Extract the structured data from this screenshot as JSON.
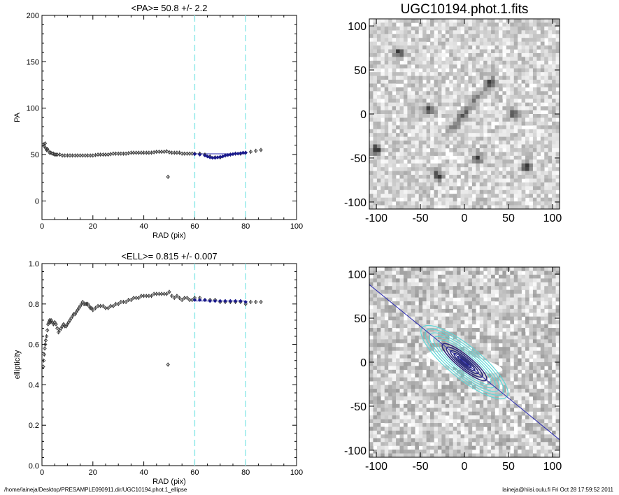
{
  "footer": {
    "path": "/home/laineja/Desktop/PRESAMPLE090911.dir/UGC10194.phot.1_ellipse",
    "stamp": "laineja@hiisi.oulu.fi  Fri Oct 28 17:59:52 2011"
  },
  "colors": {
    "data_points": "#333333",
    "fit_points": "#1a1a8c",
    "fit_line": "#2a2ab0",
    "range_marker": "#8ee8e8",
    "contour_inner": "#2a2a7a",
    "contour_outer": "#5fd6d6"
  },
  "chart_data": [
    {
      "id": "pa",
      "type": "scatter",
      "title": "<PA>=  50.8 +/-   2.2",
      "xlabel": "RAD (pix)",
      "ylabel": "PA",
      "xlim": [
        0,
        100
      ],
      "ylim": [
        -20,
        200
      ],
      "xticks": [
        0,
        20,
        40,
        60,
        80,
        100
      ],
      "yticks": [
        0,
        50,
        100,
        150,
        200
      ],
      "tick_labels_x": [
        "0",
        "20",
        "40",
        "60",
        "80",
        "100"
      ],
      "tick_labels_y": [
        "0",
        "50",
        "100",
        "150",
        "200"
      ],
      "range_markers_x": [
        60,
        80
      ],
      "points": [
        [
          0.6,
          61
        ],
        [
          0.9,
          59
        ],
        [
          1.2,
          62
        ],
        [
          1.5,
          57
        ],
        [
          1.8,
          55
        ],
        [
          2.1,
          56
        ],
        [
          2.5,
          54
        ],
        [
          3,
          52
        ],
        [
          3.5,
          52
        ],
        [
          4,
          51
        ],
        [
          4.5,
          51
        ],
        [
          5,
          50
        ],
        [
          5.5,
          50
        ],
        [
          6,
          50
        ],
        [
          7,
          50
        ],
        [
          8,
          49
        ],
        [
          9,
          49
        ],
        [
          10,
          49
        ],
        [
          11,
          49
        ],
        [
          12,
          49
        ],
        [
          13,
          49
        ],
        [
          14,
          49
        ],
        [
          15,
          49
        ],
        [
          16,
          49
        ],
        [
          17,
          49
        ],
        [
          18,
          49
        ],
        [
          19,
          49
        ],
        [
          20,
          49
        ],
        [
          21,
          49.5
        ],
        [
          22,
          50
        ],
        [
          23,
          50
        ],
        [
          24,
          50
        ],
        [
          25,
          50
        ],
        [
          26,
          50
        ],
        [
          27,
          50.5
        ],
        [
          28,
          51
        ],
        [
          29,
          51
        ],
        [
          30,
          51
        ],
        [
          31,
          51
        ],
        [
          32,
          51
        ],
        [
          33,
          51
        ],
        [
          34,
          51.5
        ],
        [
          35,
          52
        ],
        [
          36,
          52
        ],
        [
          37,
          52
        ],
        [
          38,
          52
        ],
        [
          39,
          52
        ],
        [
          40,
          52
        ],
        [
          41,
          52
        ],
        [
          42,
          52
        ],
        [
          43,
          52
        ],
        [
          44,
          52.5
        ],
        [
          45,
          53
        ],
        [
          46,
          53
        ],
        [
          47,
          53
        ],
        [
          48,
          53
        ],
        [
          49,
          53.5
        ],
        [
          50,
          52.5
        ],
        [
          51,
          52
        ],
        [
          52,
          52
        ],
        [
          53,
          52
        ],
        [
          54,
          52
        ],
        [
          55,
          51
        ],
        [
          56,
          51
        ],
        [
          57,
          51
        ],
        [
          58,
          51
        ],
        [
          59,
          51
        ],
        [
          60,
          51
        ],
        [
          49.5,
          26
        ],
        [
          62,
          51
        ],
        [
          64,
          50
        ],
        [
          66,
          48
        ],
        [
          68,
          47
        ],
        [
          70,
          47
        ],
        [
          72,
          49
        ],
        [
          74,
          50
        ],
        [
          76,
          51
        ],
        [
          78,
          51
        ],
        [
          80,
          52
        ],
        [
          82,
          53
        ],
        [
          84,
          54
        ],
        [
          86,
          55
        ]
      ],
      "fit_points": [
        [
          60,
          50.5
        ],
        [
          62,
          50
        ],
        [
          64,
          49
        ],
        [
          65,
          48
        ],
        [
          66,
          47
        ],
        [
          67,
          46.5
        ],
        [
          68,
          46.5
        ],
        [
          69,
          47
        ],
        [
          70,
          47.5
        ],
        [
          71,
          48
        ],
        [
          72,
          49
        ],
        [
          73,
          49.5
        ],
        [
          74,
          50
        ],
        [
          75,
          50.5
        ],
        [
          76,
          51
        ],
        [
          77,
          51
        ],
        [
          78,
          51.5
        ],
        [
          79,
          52
        ],
        [
          80,
          52
        ]
      ],
      "fit_line": {
        "x": [
          60,
          80
        ],
        "y": 50.8
      }
    },
    {
      "id": "ell",
      "type": "scatter",
      "title": "<ELL>= 0.815 +/-  0.007",
      "xlabel": "RAD (pix)",
      "ylabel": "ellipticity",
      "xlim": [
        0,
        100
      ],
      "ylim": [
        0,
        1
      ],
      "xticks": [
        0,
        20,
        40,
        60,
        80,
        100
      ],
      "yticks": [
        0,
        0.2,
        0.4,
        0.6,
        0.8,
        1.0
      ],
      "tick_labels_x": [
        "0",
        "20",
        "40",
        "60",
        "80",
        "100"
      ],
      "tick_labels_y": [
        "0.0",
        "0.2",
        "0.4",
        "0.6",
        "0.8",
        "1.0"
      ],
      "range_markers_x": [
        60,
        80
      ],
      "points": [
        [
          0.5,
          0.49
        ],
        [
          0.7,
          0.52
        ],
        [
          0.9,
          0.55
        ],
        [
          1.1,
          0.58
        ],
        [
          1.3,
          0.6
        ],
        [
          1.5,
          0.62
        ],
        [
          1.8,
          0.64
        ],
        [
          2.1,
          0.67
        ],
        [
          2.4,
          0.7
        ],
        [
          2.7,
          0.71
        ],
        [
          3,
          0.72
        ],
        [
          3.3,
          0.71
        ],
        [
          3.6,
          0.72
        ],
        [
          4,
          0.71
        ],
        [
          4.5,
          0.7
        ],
        [
          5,
          0.71
        ],
        [
          5.5,
          0.7
        ],
        [
          6,
          0.68
        ],
        [
          6.5,
          0.66
        ],
        [
          7,
          0.67
        ],
        [
          7.5,
          0.68
        ],
        [
          8,
          0.69
        ],
        [
          8.5,
          0.7
        ],
        [
          9,
          0.69
        ],
        [
          9.5,
          0.69
        ],
        [
          10,
          0.7
        ],
        [
          10.5,
          0.71
        ],
        [
          11,
          0.72
        ],
        [
          11.5,
          0.73
        ],
        [
          12,
          0.74
        ],
        [
          12.5,
          0.75
        ],
        [
          13,
          0.75
        ],
        [
          13.5,
          0.76
        ],
        [
          14,
          0.77
        ],
        [
          14.5,
          0.78
        ],
        [
          15,
          0.79
        ],
        [
          15.5,
          0.8
        ],
        [
          16,
          0.81
        ],
        [
          16.5,
          0.8
        ],
        [
          17,
          0.8
        ],
        [
          17.5,
          0.8
        ],
        [
          18,
          0.8
        ],
        [
          18.5,
          0.79
        ],
        [
          19,
          0.78
        ],
        [
          19.5,
          0.78
        ],
        [
          20,
          0.77
        ],
        [
          21,
          0.78
        ],
        [
          22,
          0.79
        ],
        [
          23,
          0.79
        ],
        [
          24,
          0.79
        ],
        [
          25,
          0.78
        ],
        [
          26,
          0.78
        ],
        [
          27,
          0.79
        ],
        [
          28,
          0.79
        ],
        [
          29,
          0.8
        ],
        [
          30,
          0.8
        ],
        [
          31,
          0.81
        ],
        [
          32,
          0.81
        ],
        [
          33,
          0.81
        ],
        [
          34,
          0.82
        ],
        [
          35,
          0.82
        ],
        [
          36,
          0.83
        ],
        [
          37,
          0.83
        ],
        [
          38,
          0.83
        ],
        [
          39,
          0.84
        ],
        [
          40,
          0.84
        ],
        [
          41,
          0.84
        ],
        [
          42,
          0.84
        ],
        [
          43,
          0.84
        ],
        [
          44,
          0.85
        ],
        [
          45,
          0.85
        ],
        [
          46,
          0.85
        ],
        [
          47,
          0.85
        ],
        [
          48,
          0.85
        ],
        [
          49,
          0.85
        ],
        [
          50,
          0.86
        ],
        [
          51,
          0.84
        ],
        [
          52,
          0.83
        ],
        [
          53,
          0.84
        ],
        [
          54,
          0.83
        ],
        [
          55,
          0.82
        ],
        [
          56,
          0.83
        ],
        [
          57,
          0.83
        ],
        [
          58,
          0.82
        ],
        [
          59,
          0.82
        ],
        [
          60,
          0.83
        ],
        [
          49.5,
          0.5
        ],
        [
          62,
          0.83
        ],
        [
          64,
          0.82
        ],
        [
          66,
          0.82
        ],
        [
          68,
          0.82
        ],
        [
          70,
          0.81
        ],
        [
          72,
          0.81
        ],
        [
          74,
          0.81
        ],
        [
          76,
          0.81
        ],
        [
          78,
          0.81
        ],
        [
          80,
          0.8
        ],
        [
          82,
          0.81
        ],
        [
          84,
          0.81
        ],
        [
          86,
          0.81
        ]
      ],
      "fit_points": [
        [
          60,
          0.82
        ],
        [
          62,
          0.82
        ],
        [
          64,
          0.82
        ],
        [
          66,
          0.815
        ],
        [
          68,
          0.815
        ],
        [
          70,
          0.815
        ],
        [
          72,
          0.815
        ],
        [
          74,
          0.815
        ],
        [
          76,
          0.815
        ],
        [
          78,
          0.815
        ],
        [
          80,
          0.81
        ]
      ],
      "fit_line": {
        "x": [
          60,
          80
        ],
        "y": 0.815
      }
    },
    {
      "id": "img",
      "type": "heatmap",
      "title": "UGC10194.phot.1.fits",
      "xlim": [
        -108,
        108
      ],
      "ylim": [
        -108,
        108
      ],
      "xticks": [
        -100,
        -50,
        0,
        50,
        100
      ],
      "yticks": [
        -100,
        -50,
        0,
        50,
        100
      ],
      "tick_labels_x": [
        "-100",
        "-50",
        "0",
        "50",
        "100"
      ],
      "tick_labels_y": [
        "-100",
        "-50",
        "0",
        "50",
        "100"
      ],
      "galaxy": {
        "pa_deg": 50.8,
        "ellipticity": 0.815,
        "center": [
          0,
          0
        ]
      },
      "stars": [
        [
          -40,
          5
        ],
        [
          30,
          35
        ],
        [
          -100,
          -40
        ],
        [
          55,
          0
        ],
        [
          15,
          -50
        ],
        [
          -30,
          -70
        ],
        [
          70,
          -60
        ],
        [
          -75,
          70
        ]
      ]
    },
    {
      "id": "contours",
      "type": "heatmap",
      "xlim": [
        -108,
        108
      ],
      "ylim": [
        -108,
        108
      ],
      "xticks": [
        -100,
        -50,
        0,
        50,
        100
      ],
      "yticks": [
        -100,
        -50,
        0,
        50,
        100
      ],
      "tick_labels_x": [
        "-100",
        "-50",
        "0",
        "50",
        "100"
      ],
      "tick_labels_y": [
        "-100",
        "-50",
        "0",
        "50",
        "100"
      ],
      "contour_pa_deg": 50.8,
      "contour_ellipticity": 0.815,
      "contour_levels_a": [
        6,
        10,
        15,
        20,
        26,
        32,
        38,
        44,
        50,
        56,
        62
      ],
      "major_axis_line": {
        "pa_deg": 50.8
      }
    }
  ]
}
